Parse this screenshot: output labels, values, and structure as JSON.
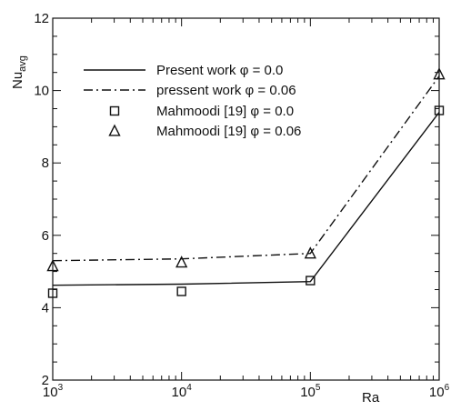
{
  "chart_data": {
    "type": "line",
    "xscale": "log",
    "xlabel": "Ra",
    "ylabel_main": "Nu",
    "ylabel_sub": "avg",
    "xlim": [
      1000,
      1000000
    ],
    "ylim": [
      2,
      12
    ],
    "x_ticks": [
      {
        "value": 1000,
        "base": "10",
        "exp": "3"
      },
      {
        "value": 10000,
        "base": "10",
        "exp": "4"
      },
      {
        "value": 100000,
        "base": "10",
        "exp": "5"
      },
      {
        "value": 1000000,
        "base": "10",
        "exp": "6"
      }
    ],
    "y_ticks": [
      {
        "value": 2,
        "label": "2"
      },
      {
        "value": 4,
        "label": "4"
      },
      {
        "value": 6,
        "label": "6"
      },
      {
        "value": 8,
        "label": "8"
      },
      {
        "value": 10,
        "label": "10"
      },
      {
        "value": 12,
        "label": "12"
      }
    ],
    "grid": false,
    "legend_position": "top-left",
    "series": [
      {
        "name": "Present work φ = 0.0",
        "style": "solid",
        "marker": "none",
        "x": [
          1000,
          10000,
          100000,
          1000000
        ],
        "y": [
          4.62,
          4.65,
          4.72,
          9.4
        ]
      },
      {
        "name": "pressent work φ = 0.06",
        "style": "dashdot",
        "marker": "none",
        "x": [
          1000,
          10000,
          100000,
          1000000
        ],
        "y": [
          5.3,
          5.35,
          5.5,
          10.4
        ]
      },
      {
        "name": "Mahmoodi [19] φ = 0.0",
        "style": "none",
        "marker": "square",
        "x": [
          1000,
          10000,
          100000,
          1000000
        ],
        "y": [
          4.4,
          4.45,
          4.75,
          9.45
        ]
      },
      {
        "name": "Mahmoodi [19] φ = 0.06",
        "style": "none",
        "marker": "triangle",
        "x": [
          1000,
          10000,
          100000,
          1000000
        ],
        "y": [
          5.15,
          5.25,
          5.5,
          10.45
        ]
      }
    ]
  }
}
